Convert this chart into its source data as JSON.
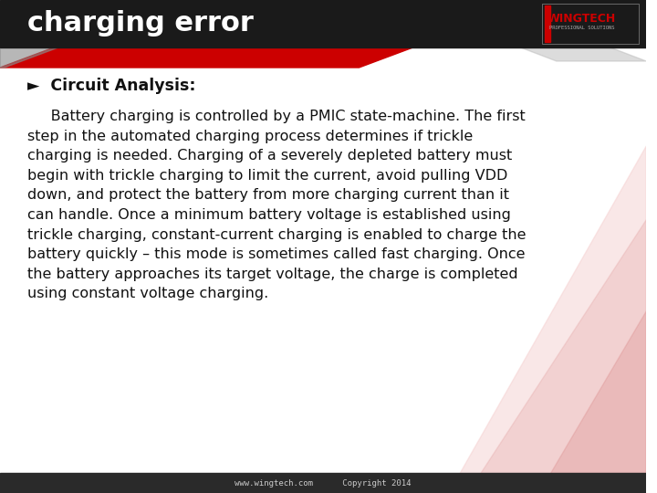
{
  "title": "charging error",
  "title_color": "#FFFFFF",
  "title_bg_color": "#1a1a1a",
  "bullet_label": "►  Circuit Analysis:",
  "body_text": "     Battery charging is controlled by a PMIC state-machine. The first\nstep in the automated charging process determines if trickle\ncharging is needed. Charging of a severely depleted battery must\nbegin with trickle charging to limit the current, avoid pulling VDD\ndown, and protect the battery from more charging current than it\ncan handle. Once a minimum battery voltage is established using\ntrickle charging, constant-current charging is enabled to charge the\nbattery quickly – this mode is sometimes called fast charging. Once\nthe battery approaches its target voltage, the charge is completed\nusing constant voltage charging.",
  "footer_text": "www.wingtech.com      Copyright 2014",
  "footer_bg_color": "#2a2a2a",
  "footer_text_color": "#CCCCCC",
  "bg_color": "#FFFFFF",
  "logo_text": "WINGTECH",
  "logo_sub": "PROFESSIONAL SOLUTIONS",
  "body_font_size": 11.5,
  "bullet_font_size": 12.5,
  "title_font_size": 22,
  "deco_red_color": "#CC0000",
  "deco_gray_color": "#AAAAAA"
}
